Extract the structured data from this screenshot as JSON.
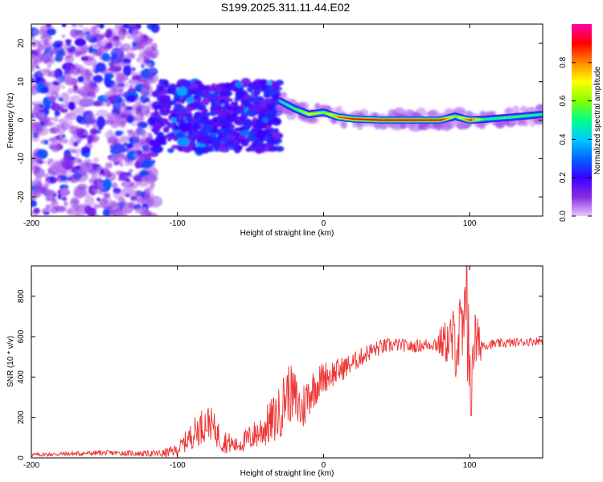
{
  "title": "S199.2025.311.11.44.E02",
  "chart_data": [
    {
      "type": "heatmap",
      "name": "spectrogram",
      "xlabel": "Height of straight line (km)",
      "ylabel": "Frequency (Hz)",
      "xlim": [
        -200,
        150
      ],
      "ylim": [
        -25,
        25
      ],
      "xticks": [
        -200,
        -100,
        0,
        100
      ],
      "yticks": [
        -20,
        -10,
        0,
        10,
        20
      ],
      "colorbar": {
        "label": "Normalized spectral amplitude",
        "range": [
          0,
          1
        ],
        "ticks": [
          0.0,
          0.2,
          0.4,
          0.6,
          0.8
        ],
        "colors": [
          "#e6c8ff",
          "#8a2be2",
          "#3a00ff",
          "#0066ff",
          "#00ccff",
          "#00ff88",
          "#88ff00",
          "#ffff00",
          "#ff8800",
          "#ff0000",
          "#ff00aa"
        ]
      },
      "line": {
        "x": [
          -30,
          -20,
          -10,
          0,
          10,
          20,
          40,
          60,
          80,
          90,
          100,
          110,
          130,
          150
        ],
        "freq": [
          5,
          3,
          1.5,
          2,
          0.8,
          0.3,
          0,
          0,
          0,
          1,
          0,
          0.2,
          0.8,
          1.5
        ],
        "amplitude": [
          0.45,
          0.55,
          0.7,
          0.6,
          0.85,
          0.9,
          0.95,
          0.95,
          0.92,
          0.6,
          0.9,
          0.5,
          0.55,
          0.5
        ]
      },
      "clusters": [
        {
          "xrange": [
            -200,
            -115
          ],
          "frange": [
            -25,
            25
          ],
          "level": "low-to-mid"
        },
        {
          "xrange": [
            -115,
            -30
          ],
          "frange": [
            -8,
            10
          ],
          "level": "mid"
        }
      ]
    },
    {
      "type": "line",
      "name": "snr",
      "xlabel": "Height of straight line (km)",
      "ylabel": "SNR (10 * v/v)",
      "xlim": [
        -200,
        150
      ],
      "ylim": [
        0,
        950
      ],
      "xticks": [
        -200,
        -100,
        0,
        100
      ],
      "yticks": [
        0,
        200,
        400,
        600,
        800
      ],
      "color": "#ee3333",
      "trend_x": [
        -200,
        -150,
        -110,
        -100,
        -85,
        -78,
        -70,
        -60,
        -50,
        -40,
        -30,
        -25,
        -20,
        -15,
        -10,
        0,
        10,
        20,
        30,
        40,
        50,
        60,
        70,
        80,
        90,
        95,
        100,
        105,
        110,
        130,
        150
      ],
      "trend_y": [
        15,
        25,
        20,
        40,
        150,
        180,
        90,
        60,
        100,
        150,
        220,
        330,
        300,
        230,
        320,
        400,
        430,
        470,
        520,
        550,
        560,
        550,
        560,
        570,
        580,
        600,
        620,
        560,
        560,
        570,
        580
      ],
      "noise_x": [
        -200,
        -120,
        -100,
        -85,
        -75,
        -60,
        -45,
        -35,
        -25,
        -15,
        0,
        20,
        40,
        60,
        75,
        85,
        95,
        100,
        105,
        110,
        150
      ],
      "noise_amp": [
        10,
        15,
        30,
        90,
        80,
        40,
        80,
        120,
        150,
        130,
        80,
        50,
        40,
        30,
        35,
        120,
        250,
        300,
        150,
        25,
        20
      ],
      "peak_max": 950,
      "peak_min": 210
    }
  ]
}
